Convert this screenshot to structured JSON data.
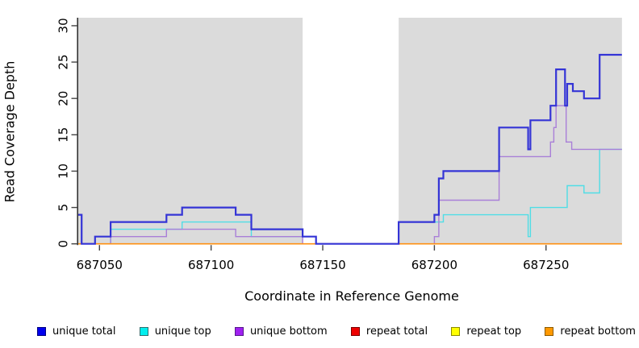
{
  "figure": {
    "x_axis_label": "Coordinate in Reference Genome",
    "y_axis_label": "Read Coverage Depth"
  },
  "legend": {
    "items": [
      {
        "label": "unique total",
        "color": "#0000ee",
        "border": "#000080"
      },
      {
        "label": "unique top",
        "color": "#00eeee",
        "border": "#2f6f6f"
      },
      {
        "label": "unique bottom",
        "color": "#a020f0",
        "border": "#551a8b"
      },
      {
        "label": "repeat total",
        "color": "#ee0000",
        "border": "#7a0000"
      },
      {
        "label": "repeat top",
        "color": "#ffff00",
        "border": "#8b8b00"
      },
      {
        "label": "repeat bottom",
        "color": "#ff9900",
        "border": "#8b5a00"
      }
    ]
  },
  "chart_data": {
    "type": "line",
    "subtype": "step",
    "title": "",
    "xlabel": "Coordinate in Reference Genome",
    "ylabel": "Read Coverage Depth",
    "xlim": [
      687040.5,
      687285.5
    ],
    "ylim": [
      0,
      31.1
    ],
    "x_ticks": [
      687050,
      687100,
      687150,
      687200,
      687250
    ],
    "y_ticks": [
      0,
      5,
      10,
      15,
      20,
      25,
      30
    ],
    "grid": false,
    "legend_position": "bottom",
    "plot_background": "#ffffff",
    "shaded_regions": [
      {
        "from": 687040.5,
        "to": 687141,
        "color": "#dbdbdb"
      },
      {
        "from": 687184,
        "to": 687284,
        "color": "#dbdbdb"
      }
    ],
    "x_end": 687284,
    "series": [
      {
        "name": "repeat total",
        "color": "#cc2222",
        "width": 1.2,
        "points": [
          [
            687040.5,
            0
          ]
        ]
      },
      {
        "name": "repeat top",
        "color": "#ededed00-fix",
        "width": 1.2,
        "points": [
          [
            687040.5,
            0
          ]
        ]
      },
      {
        "name": "unique top",
        "color": "#4fdde6",
        "width": 1.4,
        "points": [
          [
            687040.5,
            0
          ],
          [
            687055,
            2
          ],
          [
            687087,
            3
          ],
          [
            687118,
            1
          ],
          [
            687147,
            0
          ],
          [
            687184,
            3
          ],
          [
            687204,
            4
          ],
          [
            687242,
            1
          ],
          [
            687243,
            5
          ],
          [
            687259.5,
            8
          ],
          [
            687267,
            7
          ],
          [
            687274,
            13
          ]
        ]
      },
      {
        "name": "unique bottom",
        "color": "#a97fd8",
        "width": 1.4,
        "points": [
          [
            687040.5,
            0
          ],
          [
            687055,
            1
          ],
          [
            687080,
            2
          ],
          [
            687111,
            1
          ],
          [
            687141,
            0
          ],
          [
            687200,
            1
          ],
          [
            687202,
            6
          ],
          [
            687229,
            12
          ],
          [
            687252,
            14
          ],
          [
            687253.5,
            16
          ],
          [
            687254.5,
            19
          ],
          [
            687259,
            14
          ],
          [
            687261.5,
            13
          ]
        ]
      },
      {
        "name": "repeat bottom",
        "color": "#ff9012",
        "width": 1.6,
        "points": [
          [
            687040.5,
            0
          ]
        ]
      },
      {
        "name": "unique total",
        "color": "#3434d6",
        "width": 2.2,
        "points": [
          [
            687040.5,
            4
          ],
          [
            687042,
            0
          ],
          [
            687048,
            1
          ],
          [
            687055,
            3
          ],
          [
            687080,
            4
          ],
          [
            687087,
            5
          ],
          [
            687111,
            4
          ],
          [
            687118,
            2
          ],
          [
            687141,
            1
          ],
          [
            687147,
            0
          ],
          [
            687184,
            3
          ],
          [
            687200,
            4
          ],
          [
            687202,
            9
          ],
          [
            687204,
            10
          ],
          [
            687229,
            16
          ],
          [
            687242,
            13
          ],
          [
            687243,
            17
          ],
          [
            687252,
            19
          ],
          [
            687254.5,
            24
          ],
          [
            687258.5,
            19
          ],
          [
            687259.5,
            22
          ],
          [
            687262,
            21
          ],
          [
            687267,
            20
          ],
          [
            687274,
            26
          ]
        ]
      }
    ]
  }
}
